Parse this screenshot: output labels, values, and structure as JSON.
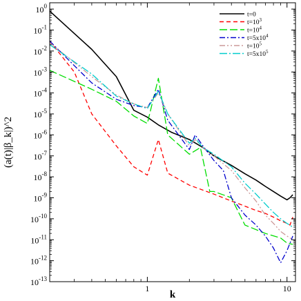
{
  "chart_data": {
    "type": "line",
    "xlabel": "k",
    "ylabel": "(a(t)|β_k|)^2",
    "xscale": "log",
    "yscale": "log",
    "xlim": [
      0.2,
      11.5
    ],
    "ylim": [
      1e-13,
      2
    ],
    "legend_position": "top-right",
    "x_ticks": [
      {
        "value": 1,
        "label": "1"
      },
      {
        "value": 10,
        "label": "10"
      }
    ],
    "y_ticks": [
      {
        "value": 1.0,
        "base": "10",
        "exp": "0"
      },
      {
        "value": 0.1,
        "base": "10",
        "exp": "-1"
      },
      {
        "value": 0.01,
        "base": "10",
        "exp": "-2"
      },
      {
        "value": 0.001,
        "base": "10",
        "exp": "-3"
      },
      {
        "value": 0.0001,
        "base": "10",
        "exp": "-4"
      },
      {
        "value": 1e-05,
        "base": "10",
        "exp": "-5"
      },
      {
        "value": 1e-06,
        "base": "10",
        "exp": "-6"
      },
      {
        "value": 1e-07,
        "base": "10",
        "exp": "-7"
      },
      {
        "value": 1e-08,
        "base": "10",
        "exp": "-8"
      },
      {
        "value": 1e-09,
        "base": "10",
        "exp": "-9"
      },
      {
        "value": 1e-10,
        "base": "10",
        "exp": "-10"
      },
      {
        "value": 1e-11,
        "base": "10",
        "exp": "-11"
      },
      {
        "value": 1e-12,
        "base": "10",
        "exp": "-12"
      },
      {
        "value": 1e-13,
        "base": "10",
        "exp": "-13"
      }
    ],
    "series": [
      {
        "name": "t=0",
        "base": "t=0",
        "exp": "",
        "color": "#000000",
        "dash": "",
        "x": [
          0.2,
          0.4,
          0.6,
          0.8,
          1.0,
          1.2,
          1.5,
          2.0,
          2.5,
          3.0,
          4.0,
          5.0,
          6.0,
          7.0,
          8.0,
          9.0,
          10.0,
          10.5,
          11.0
        ],
        "y": [
          0.8,
          0.012,
          0.0006,
          1.5e-05,
          7e-06,
          3e-06,
          1.3e-06,
          6e-07,
          2.5e-07,
          1e-07,
          3.5e-08,
          1.4e-08,
          7e-09,
          3.5e-09,
          2e-09,
          1.2e-09,
          8e-10,
          1e-09,
          1.4e-09
        ]
      },
      {
        "name": "t=10^3",
        "base": "t=10",
        "exp": "3",
        "color": "#ff0000",
        "dash": "6,4",
        "x": [
          0.2,
          0.3,
          0.4,
          0.6,
          0.8,
          1.0,
          1.2,
          1.4,
          2.0,
          3.0,
          4.0,
          5.0,
          6.0,
          7.0,
          8.0,
          9.0,
          10.0,
          10.5,
          11.0
        ],
        "y": [
          0.03,
          0.001,
          1e-05,
          3e-07,
          3e-08,
          1.2e-08,
          6e-07,
          1.5e-08,
          4e-09,
          1.5e-09,
          7e-10,
          4e-10,
          2.5e-10,
          1.8e-10,
          1.2e-10,
          8e-11,
          6e-11,
          5e-11,
          1.2e-10
        ]
      },
      {
        "name": "t=10^4",
        "base": "t=10",
        "exp": "4",
        "color": "#00dd00",
        "dash": "11,4",
        "x": [
          0.2,
          0.4,
          0.6,
          0.8,
          1.0,
          1.2,
          1.4,
          2.0,
          2.4,
          2.8,
          3.0,
          4.0,
          4.5,
          5.0,
          7.0,
          9.0,
          10.0,
          11.0
        ],
        "y": [
          0.0012,
          0.00015,
          4e-05,
          8e-06,
          3.5e-06,
          0.0005,
          1e-06,
          1.2e-07,
          2.5e-07,
          2e-09,
          2e-09,
          1e-09,
          2e-10,
          5e-11,
          2e-11,
          1.2e-11,
          7e-12,
          6e-12
        ]
      },
      {
        "name": "t=5x10^4",
        "base": "t=5x10",
        "exp": "4",
        "color": "#0000cc",
        "dash": "8,3,2,3",
        "x": [
          0.2,
          0.3,
          0.4,
          0.6,
          0.8,
          1.0,
          1.2,
          1.4,
          2.0,
          2.2,
          2.5,
          3.0,
          3.5,
          4.0,
          5.0,
          6.0,
          7.0,
          8.0,
          9.0,
          10.0,
          11.0
        ],
        "y": [
          0.03,
          0.002,
          0.0003,
          5e-05,
          2.5e-05,
          2e-05,
          0.00015,
          5e-06,
          2e-07,
          1e-06,
          3e-07,
          6e-08,
          2e-08,
          1e-09,
          1.5e-10,
          5e-11,
          1.5e-11,
          4e-12,
          8e-13,
          3e-12,
          1.5e-11
        ]
      },
      {
        "name": "t=10^5",
        "base": "t=10",
        "exp": "5",
        "color": "#cc9999",
        "dash": "8,3,2,3,2,3",
        "x": [
          0.2,
          0.4,
          0.6,
          0.8,
          1.0,
          1.2,
          1.4,
          2.0,
          2.2,
          2.5,
          3.0,
          4.0,
          5.0,
          6.0,
          7.0,
          8.0,
          9.0,
          10.0,
          11.0
        ],
        "y": [
          0.025,
          0.0006,
          8e-05,
          3e-05,
          2e-05,
          0.0001,
          1e-05,
          3e-07,
          6e-07,
          2.5e-07,
          1e-07,
          2e-08,
          3e-09,
          7e-10,
          1.5e-10,
          6e-11,
          2.5e-11,
          1.5e-11,
          1e-11
        ]
      },
      {
        "name": "t=5x10^5",
        "base": "t=5x10",
        "exp": "5",
        "color": "#00cccc",
        "dash": "11,3,2,3",
        "x": [
          0.2,
          0.4,
          0.6,
          0.8,
          1.0,
          1.2,
          1.4,
          2.0,
          2.2,
          2.5,
          3.0,
          4.0,
          5.0,
          6.0,
          7.0,
          8.0,
          9.0,
          10.0,
          11.0
        ],
        "y": [
          0.02,
          0.0008,
          7e-05,
          3e-05,
          1.8e-05,
          0.00012,
          1e-05,
          4e-07,
          7e-07,
          2.5e-07,
          1.2e-07,
          3e-08,
          5e-09,
          1.5e-09,
          5e-10,
          2e-10,
          1e-10,
          6e-11,
          4e-11
        ]
      }
    ]
  }
}
